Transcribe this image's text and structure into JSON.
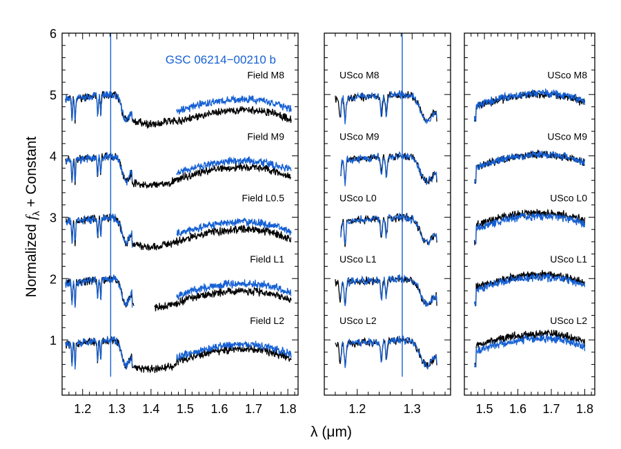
{
  "colors": {
    "target": "#1560d4",
    "template": "#000000",
    "frame": "#000000"
  },
  "figure": {
    "ylabel_prefix": "Normalized ",
    "ylabel_var": "f",
    "ylabel_sub": "λ",
    "ylabel_suffix": " + Constant",
    "xlabel": "λ (μm)",
    "target_name": "GSC 06214−00210 b"
  },
  "chart_data": [
    {
      "type": "line",
      "panel": "left",
      "xlim": [
        1.14,
        1.83
      ],
      "ylim": [
        0.1,
        6.0
      ],
      "xticks": [
        1.2,
        1.3,
        1.4,
        1.5,
        1.6,
        1.7,
        1.8
      ],
      "yticks": [
        1,
        2,
        3,
        4,
        5,
        6
      ],
      "target_legend": "GSC 06214−00210 b",
      "offsets": [
        5,
        4,
        3,
        2,
        1
      ],
      "templates": [
        "Field M8",
        "Field M9",
        "Field L0.5",
        "Field L1",
        "Field L2"
      ],
      "target_segments": [
        [
          1.15,
          1.345
        ],
        [
          1.475,
          1.81
        ]
      ],
      "template_segments": [
        [
          [
            1.15,
            1.345
          ],
          [
            1.345,
            1.475
          ],
          [
            1.475,
            1.81
          ]
        ],
        [
          [
            1.15,
            1.345
          ],
          [
            1.345,
            1.475
          ],
          [
            1.475,
            1.81
          ]
        ],
        [
          [
            1.15,
            1.345
          ],
          [
            1.345,
            1.475
          ],
          [
            1.475,
            1.81
          ]
        ],
        [
          [
            1.15,
            1.35
          ],
          [
            1.41,
            1.81
          ]
        ],
        [
          [
            1.15,
            1.345
          ],
          [
            1.345,
            1.475
          ],
          [
            1.475,
            1.81
          ]
        ]
      ],
      "emission_line_x": 1.282,
      "approx_levels": {
        "target_J": 1.02,
        "target_H_peak": 0.9,
        "template_H_peak": [
          0.75,
          0.82,
          0.8,
          0.8,
          0.85
        ]
      }
    },
    {
      "type": "line",
      "panel": "middle",
      "xlim": [
        1.14,
        1.37
      ],
      "ylim": [
        0.1,
        6.0
      ],
      "xticks": [
        1.2,
        1.3
      ],
      "offsets": [
        5,
        4,
        3,
        2,
        1
      ],
      "templates": [
        "USco M8",
        "USco M9",
        "USco L0",
        "USco L1",
        "USco L2"
      ],
      "target_segments": [
        [
          1.17,
          1.345
        ]
      ],
      "template_segments": [
        [
          [
            1.16,
            1.345
          ]
        ],
        [
          [
            1.17,
            1.345
          ]
        ],
        [
          [
            1.17,
            1.345
          ]
        ],
        [
          [
            1.16,
            1.345
          ]
        ],
        [
          [
            1.16,
            1.345
          ]
        ]
      ],
      "emission_line_x": 1.282,
      "approx_levels": {
        "target_J": 1.02
      }
    },
    {
      "type": "line",
      "panel": "right",
      "xlim": [
        1.44,
        1.83
      ],
      "ylim": [
        0.1,
        6.0
      ],
      "xticks": [
        1.5,
        1.6,
        1.7,
        1.8
      ],
      "offsets": [
        5,
        4,
        3,
        2,
        1
      ],
      "templates": [
        "USco M8",
        "USco M9",
        "USco L0",
        "USco L1",
        "USco L2"
      ],
      "target_segments": [
        [
          1.47,
          1.8
        ]
      ],
      "template_segments": [
        [
          [
            1.47,
            1.8
          ]
        ],
        [
          [
            1.47,
            1.8
          ]
        ],
        [
          [
            1.47,
            1.8
          ]
        ],
        [
          [
            1.47,
            1.8
          ]
        ],
        [
          [
            1.47,
            1.8
          ]
        ]
      ],
      "approx_levels": {
        "target_H_peak": 1.0,
        "template_H_peak": [
          1.0,
          1.02,
          1.07,
          1.06,
          1.1
        ]
      }
    }
  ]
}
